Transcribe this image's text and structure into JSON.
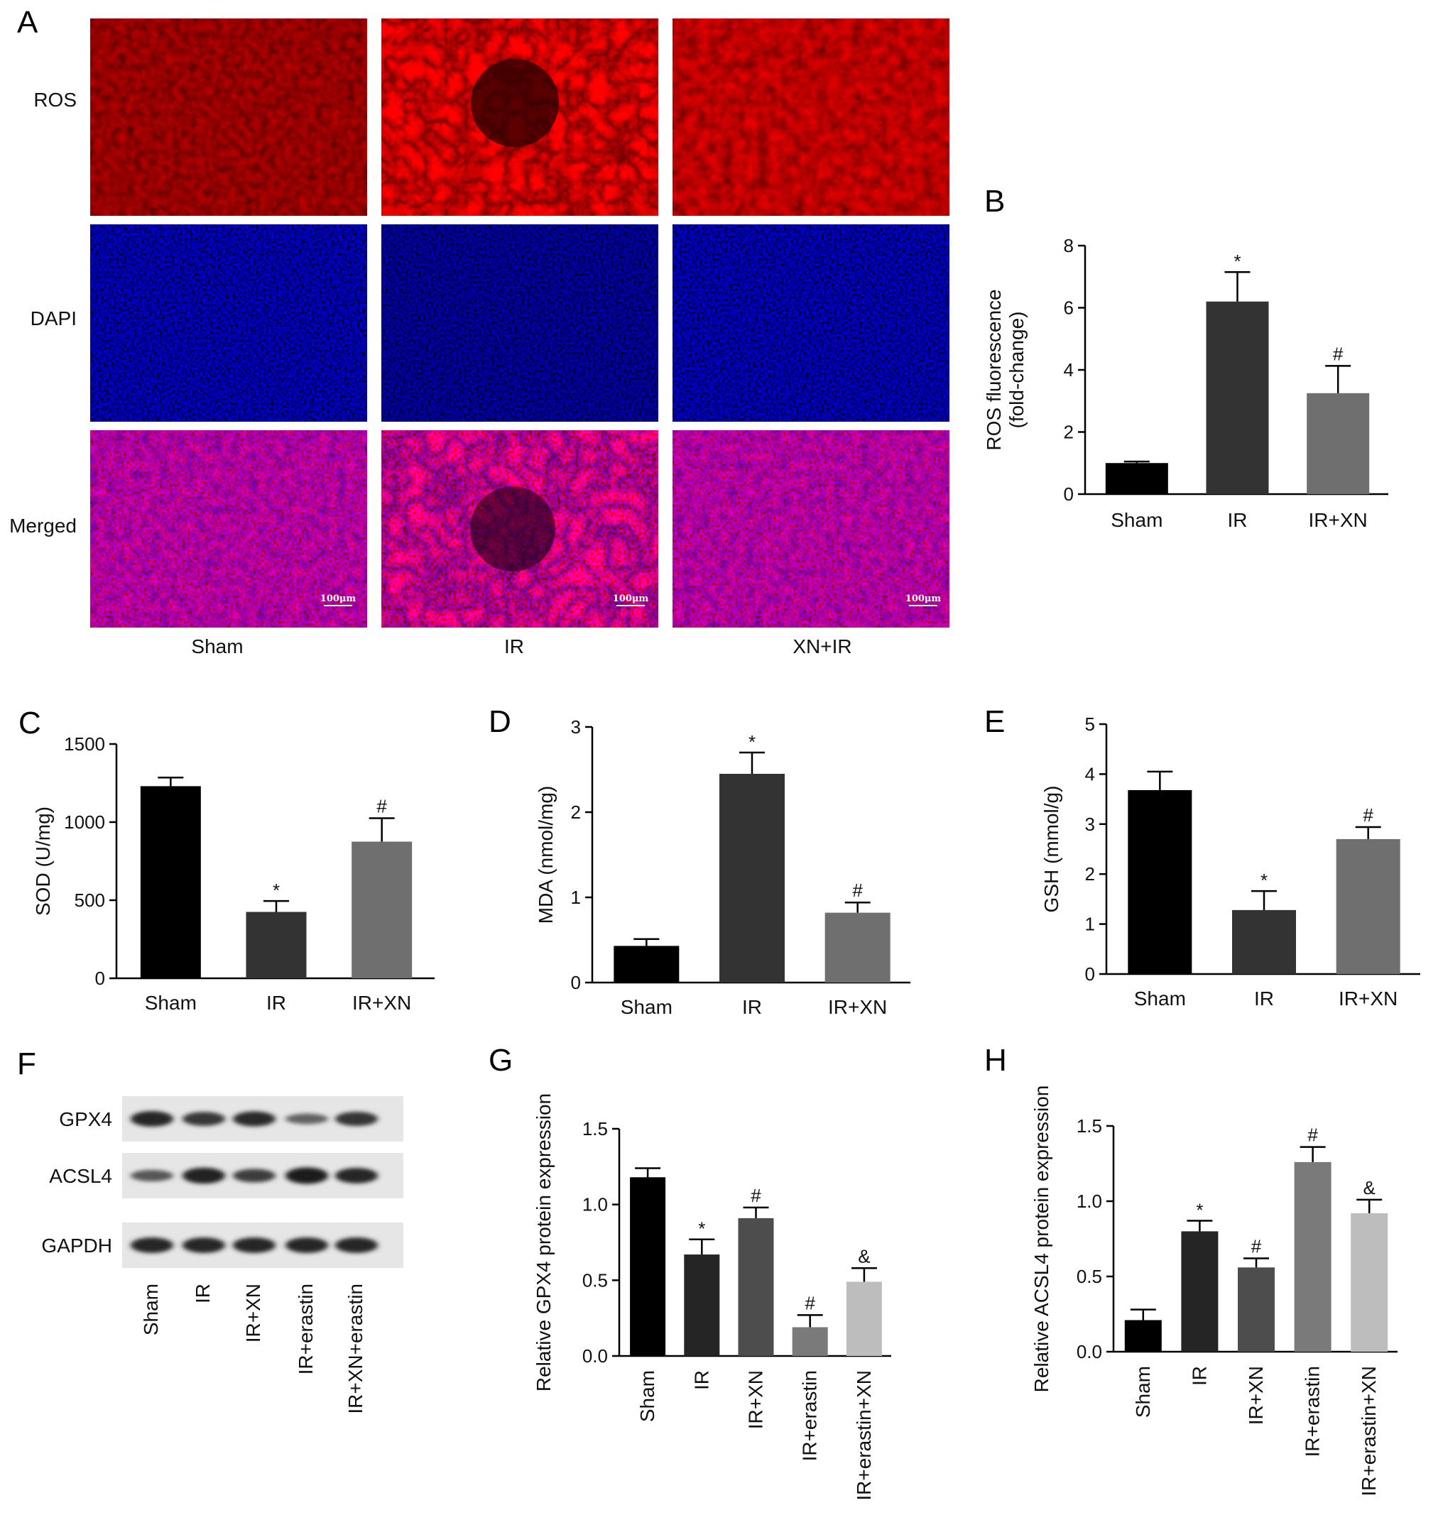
{
  "panels": {
    "A": {
      "label": "A",
      "rows": [
        "ROS",
        "DAPI",
        "Merged"
      ],
      "cols": [
        "Sham",
        "IR",
        "XN+IR"
      ],
      "scale_bar": "100μm"
    },
    "F": {
      "label": "F",
      "rows": [
        "GPX4",
        "ACSL4",
        "GAPDH"
      ],
      "lanes": [
        "Sham",
        "IR",
        "IR+XN",
        "IR+erastin",
        "IR+XN+erastin"
      ],
      "band_intensity": {
        "GPX4": [
          0.85,
          0.7,
          0.8,
          0.35,
          0.72
        ],
        "ACSL4": [
          0.45,
          0.9,
          0.65,
          0.95,
          0.85
        ],
        "GAPDH": [
          0.85,
          0.85,
          0.85,
          0.85,
          0.85
        ]
      }
    }
  },
  "chart_data": [
    {
      "id": "B",
      "label": "B",
      "type": "bar",
      "categories": [
        "Sham",
        "IR",
        "IR+XN"
      ],
      "values": [
        1.0,
        6.2,
        3.25
      ],
      "errors": [
        0.05,
        0.95,
        0.88
      ],
      "sig": [
        "",
        "*",
        "#"
      ],
      "colors": [
        "#000000",
        "#333333",
        "#6f6f6f"
      ],
      "ylabel": [
        "ROS fluorescence",
        "(fold-change)"
      ],
      "ylim": [
        0,
        8
      ],
      "yticks": [
        "0",
        "2",
        "4",
        "6",
        "8"
      ],
      "rotate_labels": false
    },
    {
      "id": "C",
      "label": "C",
      "type": "bar",
      "categories": [
        "Sham",
        "IR",
        "IR+XN"
      ],
      "values": [
        1230,
        425,
        875
      ],
      "errors": [
        55,
        70,
        150
      ],
      "sig": [
        "",
        "*",
        "#"
      ],
      "colors": [
        "#000000",
        "#333333",
        "#6f6f6f"
      ],
      "ylabel": [
        "SOD (U/mg)"
      ],
      "ylim": [
        0,
        1500
      ],
      "yticks": [
        "0",
        "500",
        "1000",
        "1500"
      ],
      "rotate_labels": false
    },
    {
      "id": "D",
      "label": "D",
      "type": "bar",
      "categories": [
        "Sham",
        "IR",
        "IR+XN"
      ],
      "values": [
        0.43,
        2.45,
        0.82
      ],
      "errors": [
        0.08,
        0.25,
        0.12
      ],
      "sig": [
        "",
        "*",
        "#"
      ],
      "colors": [
        "#000000",
        "#333333",
        "#6f6f6f"
      ],
      "ylabel": [
        "MDA (nmol/mg)"
      ],
      "ylim": [
        0,
        3
      ],
      "yticks": [
        "0",
        "1",
        "2",
        "3"
      ],
      "rotate_labels": false
    },
    {
      "id": "E",
      "label": "E",
      "type": "bar",
      "categories": [
        "Sham",
        "IR",
        "IR+XN"
      ],
      "values": [
        3.68,
        1.28,
        2.7
      ],
      "errors": [
        0.37,
        0.38,
        0.24
      ],
      "sig": [
        "",
        "*",
        "#"
      ],
      "colors": [
        "#000000",
        "#333333",
        "#6f6f6f"
      ],
      "ylabel": [
        "GSH (mmol/g)"
      ],
      "ylim": [
        0,
        5
      ],
      "yticks": [
        "0",
        "1",
        "2",
        "3",
        "4",
        "5"
      ],
      "rotate_labels": false
    },
    {
      "id": "G",
      "label": "G",
      "type": "bar",
      "categories": [
        "Sham",
        "IR",
        "IR+XN",
        "IR+erastin",
        "IR+erastin+XN"
      ],
      "values": [
        1.18,
        0.67,
        0.91,
        0.19,
        0.49
      ],
      "errors": [
        0.06,
        0.1,
        0.07,
        0.08,
        0.09
      ],
      "sig": [
        "",
        "*",
        "#",
        "#",
        "&"
      ],
      "colors": [
        "#000000",
        "#252525",
        "#4d4d4d",
        "#7a7a7a",
        "#bdbdbd"
      ],
      "ylabel": [
        "Relative GPX4 protein expression"
      ],
      "ylim": [
        0,
        1.5
      ],
      "yticks": [
        "0.0",
        "0.5",
        "1.0",
        "1.5"
      ],
      "rotate_labels": true
    },
    {
      "id": "H",
      "label": "H",
      "type": "bar",
      "categories": [
        "Sham",
        "IR",
        "IR+XN",
        "IR+erastin",
        "IR+erastin+XN"
      ],
      "values": [
        0.21,
        0.8,
        0.56,
        1.26,
        0.92
      ],
      "errors": [
        0.07,
        0.07,
        0.06,
        0.1,
        0.09
      ],
      "sig": [
        "",
        "*",
        "#",
        "#",
        "&"
      ],
      "colors": [
        "#000000",
        "#252525",
        "#4d4d4d",
        "#7a7a7a",
        "#bdbdbd"
      ],
      "ylabel": [
        "Relative ACSL4 protein expression"
      ],
      "ylim": [
        0,
        1.5
      ],
      "yticks": [
        "0.0",
        "0.5",
        "1.0",
        "1.5"
      ],
      "rotate_labels": true
    }
  ]
}
